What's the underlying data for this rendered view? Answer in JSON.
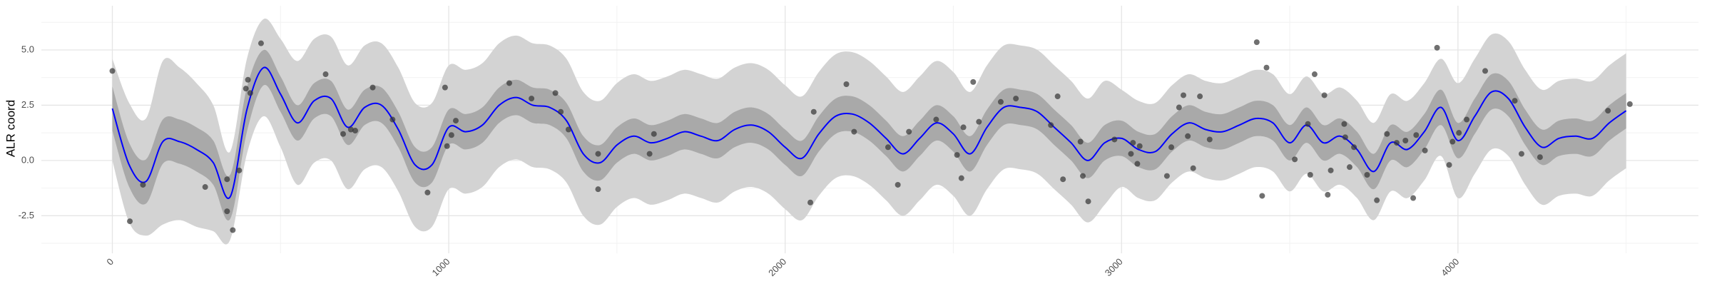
{
  "chart_data": {
    "type": "line",
    "y_label": "ALR coord",
    "xlim": [
      -211,
      4715
    ],
    "ylim": [
      -4.2,
      7.0
    ],
    "xticks": [
      0,
      1000,
      2000,
      3000,
      4000
    ],
    "yticks": [
      -2.5,
      {
        "value": 0,
        "label": "0.0"
      },
      2.5,
      {
        "value": 5,
        "label": "5.0"
      }
    ],
    "x_minor_ticks": [
      500,
      1500,
      2500,
      3500,
      4500
    ],
    "y_minor_ticks": [
      -3.75,
      -1.25,
      1.25,
      3.75,
      6.25
    ],
    "grid": true,
    "x": [
      0,
      50,
      100,
      150,
      200,
      250,
      300,
      350,
      400,
      450,
      500,
      550,
      600,
      650,
      700,
      750,
      800,
      850,
      900,
      950,
      1000,
      1050,
      1100,
      1150,
      1200,
      1250,
      1300,
      1350,
      1400,
      1450,
      1500,
      1550,
      1600,
      1650,
      1700,
      1750,
      1800,
      1850,
      1900,
      1950,
      2000,
      2050,
      2100,
      2150,
      2200,
      2250,
      2300,
      2350,
      2400,
      2450,
      2500,
      2550,
      2600,
      2650,
      2700,
      2750,
      2800,
      2850,
      2900,
      2950,
      3000,
      3050,
      3100,
      3150,
      3200,
      3250,
      3300,
      3350,
      3400,
      3450,
      3500,
      3550,
      3600,
      3650,
      3700,
      3750,
      3800,
      3850,
      3900,
      3950,
      4000,
      4050,
      4100,
      4150,
      4200,
      4250,
      4300,
      4350,
      4400,
      4450,
      4500
    ],
    "bands": [
      {
        "color": "#d3d3d3",
        "lower": [
          0.0,
          -2.8,
          -3.4,
          -2.9,
          -2.7,
          -3.0,
          -3.2,
          -3.6,
          0.3,
          2.0,
          0.6,
          -1.1,
          -0.1,
          0.0,
          -1.3,
          -0.4,
          -0.3,
          -1.4,
          -3.0,
          -3.0,
          -1.3,
          -1.5,
          -1.2,
          -0.3,
          0.05,
          -0.3,
          -0.4,
          -1.0,
          -2.5,
          -2.9,
          -2.1,
          -1.7,
          -2.0,
          -1.8,
          -1.5,
          -1.7,
          -1.9,
          -1.4,
          -1.2,
          -1.5,
          -2.2,
          -2.7,
          -1.6,
          -0.8,
          -0.7,
          -1.1,
          -1.8,
          -2.5,
          -1.8,
          -1.1,
          -1.6,
          -2.5,
          -1.3,
          -0.4,
          -0.4,
          -0.6,
          -1.3,
          -2.0,
          -2.8,
          -2.0,
          -1.2,
          -1.7,
          -1.8,
          -1.0,
          -0.5,
          -0.8,
          -0.9,
          -0.6,
          -0.3,
          -0.5,
          -1.4,
          -0.6,
          -1.4,
          -1.1,
          -1.7,
          -2.7,
          -1.4,
          -1.7,
          -0.9,
          0.2,
          -1.7,
          -0.6,
          0.5,
          0.2,
          -1.1,
          -2.0,
          -1.6,
          -1.5,
          -1.6,
          -0.9,
          -0.35
        ],
        "upper": [
          4.6,
          2.6,
          1.9,
          4.5,
          4.2,
          3.5,
          2.5,
          0.4,
          4.6,
          6.4,
          5.5,
          4.5,
          5.5,
          5.6,
          4.3,
          5.2,
          5.3,
          4.2,
          2.6,
          2.6,
          4.3,
          4.1,
          4.4,
          5.3,
          5.65,
          5.3,
          5.2,
          4.6,
          3.1,
          2.7,
          3.5,
          3.9,
          3.6,
          3.8,
          4.1,
          3.9,
          3.7,
          4.2,
          4.4,
          4.1,
          3.4,
          2.9,
          4.0,
          4.8,
          4.9,
          4.5,
          3.8,
          3.1,
          3.8,
          4.5,
          4.0,
          3.1,
          4.3,
          5.2,
          5.2,
          5.0,
          4.3,
          3.6,
          2.8,
          3.6,
          3.2,
          2.7,
          2.6,
          3.4,
          3.9,
          3.6,
          3.5,
          3.8,
          4.1,
          3.9,
          3.0,
          3.8,
          3.0,
          3.3,
          2.7,
          1.7,
          3.0,
          2.7,
          3.5,
          4.6,
          3.5,
          4.6,
          5.7,
          5.4,
          4.1,
          3.2,
          3.6,
          3.7,
          3.6,
          4.3,
          4.85
        ]
      },
      {
        "color": "#a9a9a9",
        "lower": [
          1.35,
          -1.2,
          -1.95,
          -0.15,
          -0.15,
          -0.5,
          -1.1,
          -2.65,
          1.3,
          3.4,
          2.2,
          0.9,
          1.9,
          2.0,
          0.7,
          1.6,
          1.7,
          0.6,
          -1.0,
          -1.0,
          0.7,
          0.5,
          0.8,
          1.7,
          2.05,
          1.7,
          1.6,
          1.0,
          -0.5,
          -0.9,
          -0.1,
          0.3,
          0.0,
          0.2,
          0.5,
          0.3,
          0.1,
          0.6,
          0.8,
          0.5,
          -0.2,
          -0.7,
          0.4,
          1.2,
          1.3,
          0.9,
          0.2,
          -0.5,
          0.2,
          0.9,
          0.4,
          -0.5,
          0.7,
          1.6,
          1.6,
          1.4,
          0.7,
          0.0,
          -0.8,
          0.0,
          0.2,
          -0.3,
          -0.4,
          0.4,
          0.9,
          0.6,
          0.5,
          0.8,
          1.1,
          0.9,
          0.0,
          0.8,
          0.0,
          0.3,
          -0.3,
          -1.3,
          0.0,
          -0.3,
          0.5,
          1.6,
          0.1,
          1.2,
          2.3,
          2.0,
          0.7,
          -0.2,
          0.2,
          0.3,
          0.2,
          0.9,
          1.45
        ],
        "upper": [
          3.35,
          0.8,
          0.05,
          1.85,
          1.85,
          1.5,
          0.9,
          -0.65,
          3.3,
          5.0,
          3.8,
          2.5,
          3.5,
          3.6,
          2.3,
          3.2,
          3.3,
          2.2,
          0.6,
          0.6,
          2.3,
          2.1,
          2.4,
          3.3,
          3.65,
          3.3,
          3.2,
          2.6,
          1.1,
          0.7,
          1.5,
          1.9,
          1.6,
          1.8,
          2.1,
          1.9,
          1.7,
          2.2,
          2.4,
          2.1,
          1.4,
          0.9,
          2.0,
          2.8,
          2.9,
          2.5,
          1.8,
          1.1,
          1.8,
          2.5,
          2.0,
          1.1,
          2.3,
          3.2,
          3.2,
          3.0,
          2.3,
          1.6,
          0.8,
          1.6,
          1.8,
          1.3,
          1.2,
          2.0,
          2.5,
          2.2,
          2.1,
          2.4,
          2.7,
          2.5,
          1.6,
          2.4,
          1.6,
          1.9,
          1.3,
          0.3,
          1.6,
          1.3,
          2.1,
          3.2,
          1.7,
          2.8,
          3.9,
          3.6,
          2.3,
          1.4,
          1.8,
          1.9,
          1.8,
          2.5,
          3.05
        ]
      }
    ],
    "series": [
      {
        "color": "#0000ff",
        "values": [
          2.35,
          -0.2,
          -0.95,
          0.85,
          0.85,
          0.5,
          -0.1,
          -1.65,
          2.3,
          4.2,
          3.0,
          1.7,
          2.7,
          2.8,
          1.5,
          2.4,
          2.5,
          1.4,
          -0.2,
          -0.2,
          1.5,
          1.3,
          1.6,
          2.5,
          2.85,
          2.5,
          2.4,
          1.8,
          0.3,
          -0.1,
          0.7,
          1.1,
          0.8,
          1.0,
          1.3,
          1.1,
          0.9,
          1.4,
          1.6,
          1.3,
          0.6,
          0.1,
          1.2,
          2.0,
          2.1,
          1.7,
          1.0,
          0.3,
          1.0,
          1.7,
          1.2,
          0.3,
          1.5,
          2.4,
          2.4,
          2.2,
          1.5,
          0.8,
          0.0,
          0.8,
          1.0,
          0.5,
          0.4,
          1.2,
          1.7,
          1.4,
          1.3,
          1.6,
          1.9,
          1.7,
          0.8,
          1.6,
          0.8,
          1.1,
          0.5,
          -0.5,
          0.8,
          0.5,
          1.3,
          2.4,
          0.9,
          2.0,
          3.1,
          2.8,
          1.5,
          0.6,
          1.0,
          1.1,
          1.0,
          1.7,
          2.25
        ]
      }
    ],
    "points": {
      "color": "#333333",
      "x": [
        0,
        52,
        91,
        276,
        341,
        341,
        358,
        377,
        397,
        403,
        410,
        442,
        634,
        686,
        709,
        722,
        774,
        833,
        937,
        989,
        995,
        1008,
        1021,
        1180,
        1246,
        1317,
        1333,
        1356,
        1444,
        1444,
        1597,
        1610,
        2075,
        2085,
        2182,
        2205,
        2306,
        2335,
        2368,
        2449,
        2511,
        2524,
        2530,
        2559,
        2576,
        2641,
        2686,
        2790,
        2810,
        2826,
        2878,
        2885,
        2901,
        2979,
        3028,
        3034,
        3054,
        3047,
        3135,
        3148,
        3171,
        3184,
        3197,
        3213,
        3233,
        3262,
        3402,
        3418,
        3431,
        3515,
        3554,
        3561,
        3574,
        3603,
        3613,
        3622,
        3662,
        3665,
        3678,
        3691,
        3730,
        3759,
        3789,
        3818,
        3844,
        3867,
        3876,
        3902,
        3938,
        3974,
        3984,
        4003,
        4026,
        4081,
        4169,
        4189,
        4244,
        4446,
        4511
      ],
      "y": [
        4.05,
        -2.75,
        -1.1,
        -1.2,
        -0.85,
        -2.3,
        -3.15,
        -0.45,
        3.25,
        3.65,
        3.05,
        5.3,
        3.9,
        1.2,
        1.4,
        1.35,
        3.3,
        1.85,
        -1.45,
        3.3,
        0.65,
        1.15,
        1.8,
        3.5,
        2.8,
        3.05,
        2.2,
        1.4,
        0.3,
        -1.3,
        0.3,
        1.2,
        -1.9,
        2.2,
        3.45,
        1.3,
        0.6,
        -1.1,
        1.3,
        1.85,
        0.25,
        -0.8,
        1.5,
        3.55,
        1.75,
        2.65,
        2.8,
        1.6,
        2.9,
        -0.85,
        0.85,
        -0.7,
        -1.85,
        0.95,
        0.3,
        0.8,
        0.65,
        -0.15,
        -0.7,
        0.6,
        2.4,
        2.95,
        1.1,
        -0.35,
        2.9,
        0.95,
        5.35,
        -1.6,
        4.2,
        0.05,
        1.65,
        -0.65,
        3.9,
        2.95,
        -1.55,
        -0.45,
        1.65,
        1.05,
        -0.3,
        0.6,
        -0.65,
        -1.8,
        1.2,
        0.8,
        0.9,
        -1.7,
        1.15,
        0.45,
        5.1,
        -0.2,
        0.85,
        1.25,
        1.85,
        4.05,
        2.7,
        0.3,
        0.15,
        2.25,
        2.55
      ]
    }
  }
}
